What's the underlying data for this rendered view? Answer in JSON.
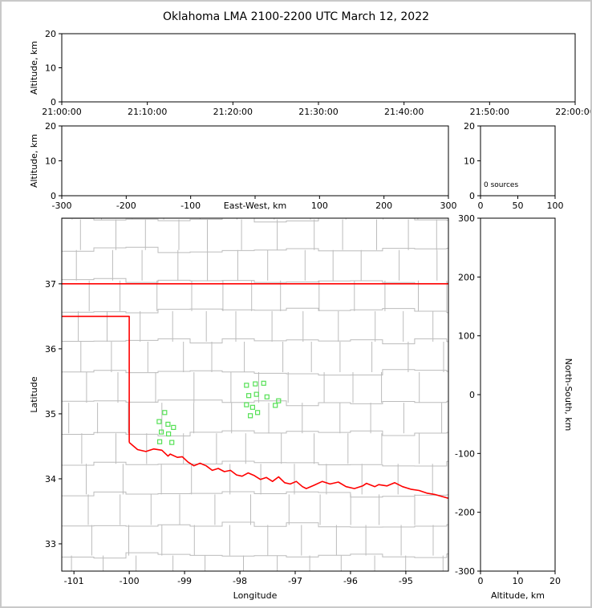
{
  "figure": {
    "title": "Oklahoma LMA 2100-2200 UTC March 12, 2022"
  },
  "colors": {
    "axis": "#000000",
    "county_lines": "#bcbcbc",
    "state_border": "#ff0000",
    "source_marker": "#55e055",
    "frame": "#c9c9c9",
    "background": "#ffffff"
  },
  "chart_data": [
    {
      "id": "time_height",
      "name": "Altitude vs time panel",
      "type": "scatter",
      "xlabel": "",
      "ylabel": "Altitude, km",
      "x_ticks": [
        "21:00:00",
        "21:10:00",
        "21:20:00",
        "21:30:00",
        "21:40:00",
        "21:50:00",
        "22:00:00"
      ],
      "ylim": [
        0,
        20
      ],
      "y_ticks": [
        0,
        10,
        20
      ],
      "points": []
    },
    {
      "id": "ew_height",
      "name": "Altitude vs east-west distance panel",
      "type": "scatter",
      "xlabel": "East-West, km",
      "xlabel_inline": true,
      "xlim": [
        -300,
        300
      ],
      "x_ticks": [
        -300,
        -200,
        -100,
        0,
        100,
        200,
        300
      ],
      "x_tick_labels": [
        "-300",
        "-200",
        "-100",
        "",
        "100",
        "200",
        "300"
      ],
      "ylabel": "Altitude, km",
      "ylim": [
        0,
        20
      ],
      "y_ticks": [
        0,
        10,
        20
      ],
      "points": []
    },
    {
      "id": "alt_histogram",
      "name": "Source count vs altitude panel",
      "type": "line",
      "annotation": "0 sources",
      "xlim": [
        0,
        100
      ],
      "x_ticks": [
        0,
        50,
        100
      ],
      "ylim": [
        0,
        20
      ],
      "y_ticks": [
        0,
        10,
        20
      ],
      "points": []
    },
    {
      "id": "plan_view",
      "name": "Plan view map of Oklahoma with LMA sources",
      "type": "scatter",
      "marker": "open-square",
      "xlabel": "Longitude",
      "ylabel": "Latitude",
      "xlim": [
        -101.22,
        -94.23
      ],
      "x_ticks": [
        -101,
        -100,
        -99,
        -98,
        -97,
        -96,
        -95
      ],
      "ylim": [
        32.58,
        38.01
      ],
      "y_ticks": [
        33,
        34,
        35,
        36,
        37
      ],
      "points": [
        [
          -97.88,
          35.44
        ],
        [
          -97.72,
          35.46
        ],
        [
          -97.57,
          35.47
        ],
        [
          -97.84,
          35.28
        ],
        [
          -97.7,
          35.3
        ],
        [
          -97.51,
          35.26
        ],
        [
          -97.88,
          35.14
        ],
        [
          -97.77,
          35.1
        ],
        [
          -97.68,
          35.02
        ],
        [
          -97.81,
          34.97
        ],
        [
          -97.3,
          35.2
        ],
        [
          -97.36,
          35.13
        ],
        [
          -99.36,
          35.02
        ],
        [
          -99.46,
          34.88
        ],
        [
          -99.3,
          34.84
        ],
        [
          -99.2,
          34.79
        ],
        [
          -99.42,
          34.72
        ],
        [
          -99.29,
          34.69
        ],
        [
          -99.45,
          34.57
        ],
        [
          -99.23,
          34.56
        ]
      ],
      "state_border_lines": [
        [
          [
            -101.22,
            37.0
          ],
          [
            -94.23,
            37.0
          ]
        ],
        [
          [
            -101.22,
            36.5
          ],
          [
            -100.0,
            36.5
          ],
          [
            -100.0,
            34.56
          ]
        ],
        [
          [
            -100.0,
            34.56
          ],
          [
            -99.85,
            34.45
          ],
          [
            -99.7,
            34.42
          ],
          [
            -99.56,
            34.46
          ],
          [
            -99.41,
            34.44
          ],
          [
            -99.3,
            34.35
          ],
          [
            -99.26,
            34.38
          ],
          [
            -99.13,
            34.33
          ],
          [
            -99.04,
            34.34
          ],
          [
            -98.94,
            34.26
          ],
          [
            -98.83,
            34.2
          ],
          [
            -98.72,
            34.24
          ],
          [
            -98.61,
            34.2
          ],
          [
            -98.5,
            34.13
          ],
          [
            -98.39,
            34.16
          ],
          [
            -98.28,
            34.11
          ],
          [
            -98.17,
            34.13
          ],
          [
            -98.06,
            34.06
          ],
          [
            -97.96,
            34.04
          ],
          [
            -97.85,
            34.09
          ],
          [
            -97.74,
            34.05
          ],
          [
            -97.63,
            33.99
          ],
          [
            -97.52,
            34.02
          ],
          [
            -97.41,
            33.96
          ],
          [
            -97.3,
            34.03
          ],
          [
            -97.19,
            33.94
          ],
          [
            -97.09,
            33.92
          ],
          [
            -96.98,
            33.96
          ],
          [
            -96.87,
            33.88
          ],
          [
            -96.8,
            33.85
          ],
          [
            -96.66,
            33.9
          ],
          [
            -96.51,
            33.96
          ],
          [
            -96.37,
            33.92
          ],
          [
            -96.22,
            33.95
          ],
          [
            -96.08,
            33.88
          ],
          [
            -95.93,
            33.85
          ],
          [
            -95.78,
            33.89
          ],
          [
            -95.71,
            33.93
          ],
          [
            -95.56,
            33.88
          ],
          [
            -95.49,
            33.91
          ],
          [
            -95.34,
            33.89
          ],
          [
            -95.2,
            33.94
          ],
          [
            -95.06,
            33.88
          ],
          [
            -94.91,
            33.84
          ],
          [
            -94.76,
            33.82
          ],
          [
            -94.62,
            33.78
          ],
          [
            -94.48,
            33.76
          ],
          [
            -94.23,
            33.7
          ]
        ]
      ]
    },
    {
      "id": "ns_height",
      "name": "North-south distance vs altitude panel",
      "type": "scatter",
      "xlabel": "Altitude, km",
      "ylabel": "North-South, km",
      "ylabel_side": "right",
      "xlim": [
        0,
        20
      ],
      "x_ticks": [
        0,
        10,
        20
      ],
      "ylim": [
        -300,
        300
      ],
      "y_ticks": [
        -300,
        -200,
        -100,
        0,
        100,
        200,
        300
      ],
      "points": []
    }
  ]
}
